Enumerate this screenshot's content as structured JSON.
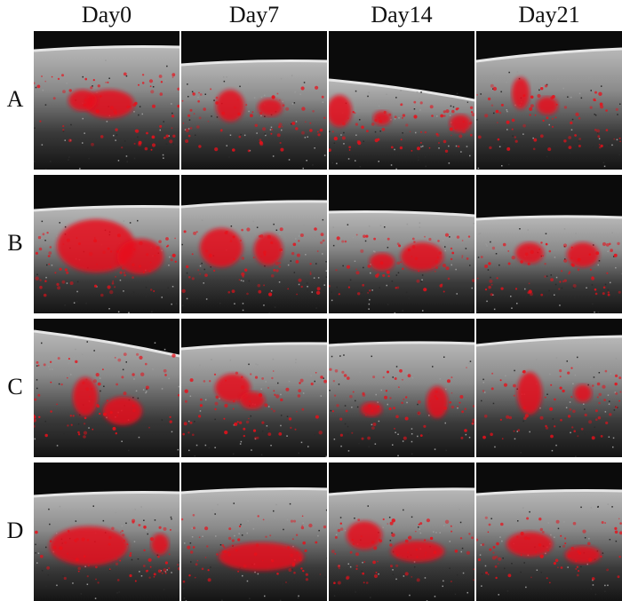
{
  "columns": [
    "Day0",
    "Day7",
    "Day14",
    "Day21"
  ],
  "rows": [
    "A",
    "B",
    "C",
    "D"
  ],
  "colors": {
    "background": "#ffffff",
    "tissue_dark": "#0b0b0b",
    "tissue_gray": "#8a8a8a",
    "surface": "#e6e6e6",
    "flow_signal": "#e8101a"
  }
}
